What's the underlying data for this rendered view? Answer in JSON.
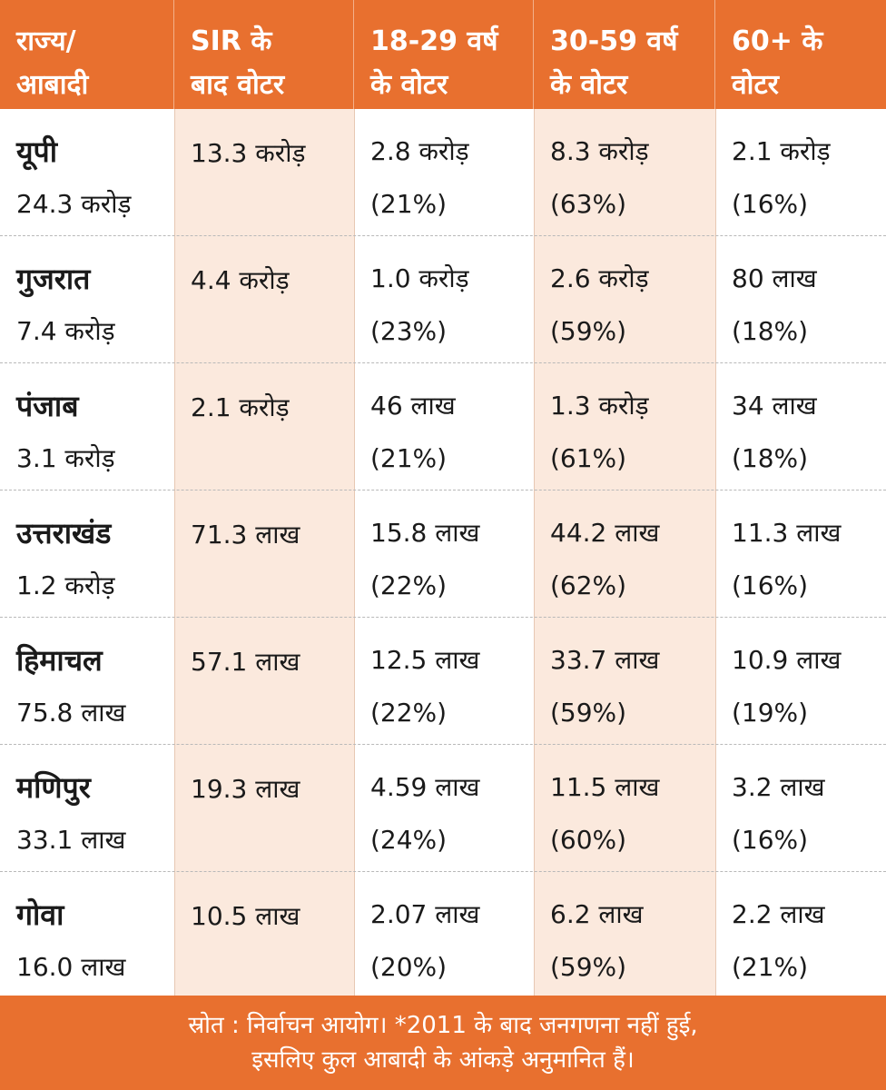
{
  "colors": {
    "header_bg": "#e8702f",
    "highlight_column_bg": "#fbe9dd",
    "text": "#1a1a1a"
  },
  "header": {
    "col1": [
      "राज्य/",
      "आबादी"
    ],
    "col2": [
      "SIR के",
      "बाद वोटर"
    ],
    "col3": [
      "18-29 वर्ष",
      "के वोटर"
    ],
    "col4": [
      "30-59 वर्ष",
      "के वोटर"
    ],
    "col5": [
      "60+ के",
      "वोटर"
    ]
  },
  "rows": [
    {
      "state": "यूपी",
      "population": "24.3 करोड़",
      "sir_voters": "13.3 करोड़",
      "age_18_29": "2.8 करोड़",
      "age_18_29_pct": "(21%)",
      "age_30_59": "8.3 करोड़",
      "age_30_59_pct": "(63%)",
      "age_60": "2.1 करोड़",
      "age_60_pct": "(16%)"
    },
    {
      "state": "गुजरात",
      "population": "7.4 करोड़",
      "sir_voters": "4.4 करोड़",
      "age_18_29": "1.0 करोड़",
      "age_18_29_pct": "(23%)",
      "age_30_59": "2.6 करोड़",
      "age_30_59_pct": "(59%)",
      "age_60": "80 लाख",
      "age_60_pct": "(18%)"
    },
    {
      "state": "पंजाब",
      "population": "3.1 करोड़",
      "sir_voters": "2.1 करोड़",
      "age_18_29": "46 लाख",
      "age_18_29_pct": "(21%)",
      "age_30_59": "1.3 करोड़",
      "age_30_59_pct": "(61%)",
      "age_60": "34 लाख",
      "age_60_pct": "(18%)"
    },
    {
      "state": "उत्तराखंड",
      "population": "1.2 करोड़",
      "sir_voters": "71.3 लाख",
      "age_18_29": "15.8 लाख",
      "age_18_29_pct": "(22%)",
      "age_30_59": "44.2 लाख",
      "age_30_59_pct": "(62%)",
      "age_60": "11.3 लाख",
      "age_60_pct": "(16%)"
    },
    {
      "state": "हिमाचल",
      "population": "75.8 लाख",
      "sir_voters": "57.1 लाख",
      "age_18_29": "12.5 लाख",
      "age_18_29_pct": "(22%)",
      "age_30_59": "33.7 लाख",
      "age_30_59_pct": "(59%)",
      "age_60": "10.9 लाख",
      "age_60_pct": "(19%)"
    },
    {
      "state": "मणिपुर",
      "population": "33.1 लाख",
      "sir_voters": "19.3 लाख",
      "age_18_29": "4.59 लाख",
      "age_18_29_pct": "(24%)",
      "age_30_59": "11.5 लाख",
      "age_30_59_pct": "(60%)",
      "age_60": "3.2 लाख",
      "age_60_pct": "(16%)"
    },
    {
      "state": "गोवा",
      "population": "16.0 लाख",
      "sir_voters": "10.5 लाख",
      "age_18_29": "2.07 लाख",
      "age_18_29_pct": "(20%)",
      "age_30_59": "6.2 लाख",
      "age_30_59_pct": "(59%)",
      "age_60": "2.2 लाख",
      "age_60_pct": "(21%)"
    }
  ],
  "footer": {
    "line1": "स्रोत : निर्वाचन आयोग। *2011 के बाद जनगणना नहीं हुई,",
    "line2": "इसलिए कुल आबादी के आंकड़े अनुमानित हैं।"
  }
}
